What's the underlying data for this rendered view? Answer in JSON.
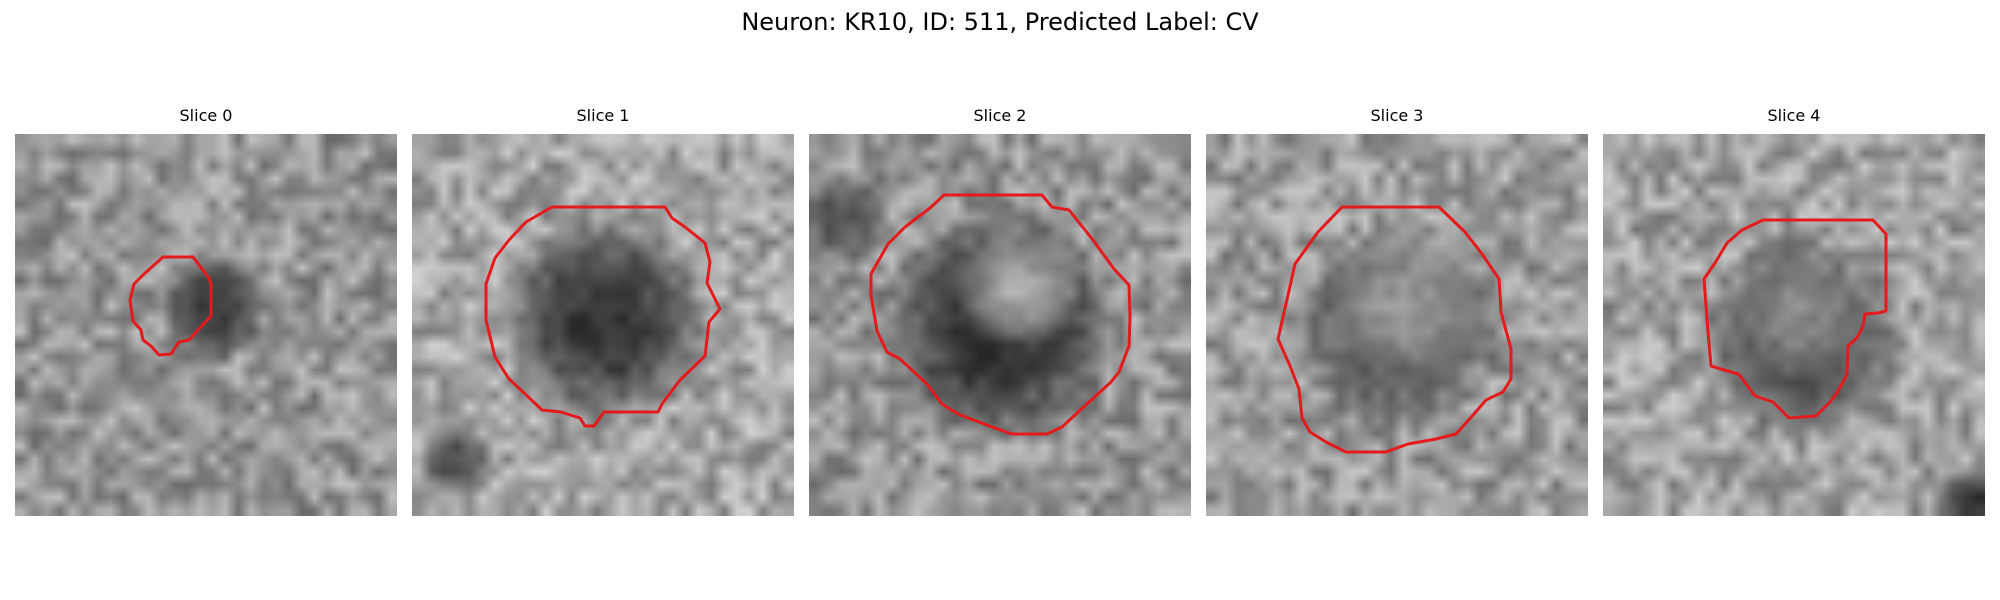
{
  "figure": {
    "title": "Neuron: KR10, ID: 511, Predicted Label: CV"
  },
  "panels": [
    {
      "title": "Slice 0"
    },
    {
      "title": "Slice 1"
    },
    {
      "title": "Slice 2"
    },
    {
      "title": "Slice 3"
    },
    {
      "title": "Slice 4"
    }
  ],
  "colors": {
    "contour": "#e41a1c",
    "background": "#ffffff"
  }
}
